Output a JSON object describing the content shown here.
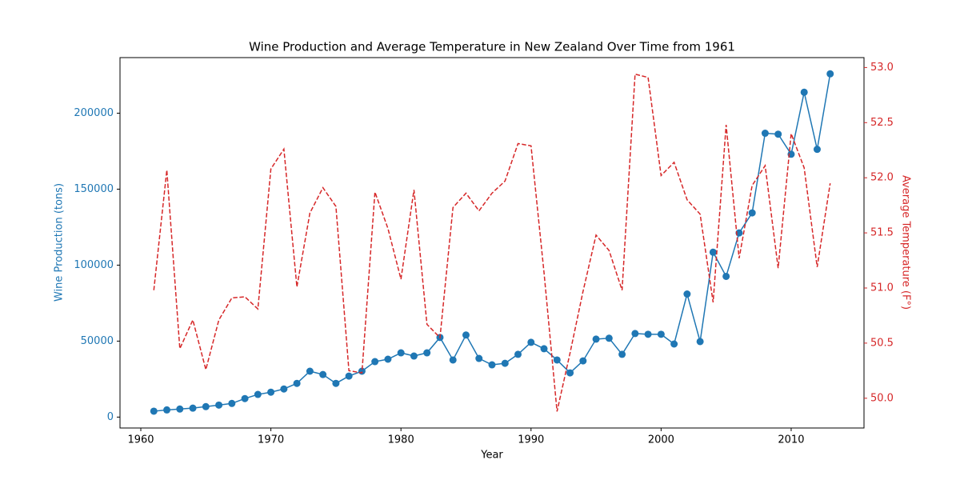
{
  "chart_data": {
    "type": "line",
    "title": "Wine Production and Average Temperature in New Zealand Over Time from 1961",
    "xlabel": "Year",
    "ylabel": "Wine Production (tons)",
    "y2label": "Average Temperature (F°)",
    "x": [
      1961,
      1962,
      1963,
      1964,
      1965,
      1966,
      1967,
      1968,
      1969,
      1970,
      1971,
      1972,
      1973,
      1974,
      1975,
      1976,
      1977,
      1978,
      1979,
      1980,
      1981,
      1982,
      1983,
      1984,
      1985,
      1986,
      1987,
      1988,
      1989,
      1990,
      1991,
      1992,
      1993,
      1994,
      1995,
      1996,
      1997,
      1998,
      1999,
      2000,
      2001,
      2002,
      2003,
      2004,
      2005,
      2006,
      2007,
      2008,
      2009,
      2010,
      2011,
      2012,
      2013
    ],
    "series": [
      {
        "color": "#1f77b4",
        "marker": true,
        "linestyle": "solid",
        "axis": "y",
        "values": [
          3900,
          4700,
          5300,
          5900,
          6900,
          7900,
          9000,
          12200,
          14900,
          16400,
          18500,
          22200,
          30200,
          28000,
          22200,
          27000,
          30200,
          36500,
          38100,
          42300,
          40200,
          42300,
          52400,
          37600,
          54000,
          38600,
          34400,
          35400,
          41300,
          49200,
          45000,
          37600,
          29100,
          37000,
          51300,
          51900,
          41300,
          55000,
          54500,
          54500,
          48100,
          81000,
          49700,
          108500,
          92600,
          121200,
          134400,
          186800,
          186200,
          173000,
          213800,
          176200,
          225900
        ]
      },
      {
        "color": "#d62728",
        "marker": false,
        "linestyle": "dashed",
        "axis": "y2",
        "values": [
          50.98,
          52.07,
          50.45,
          50.71,
          50.26,
          50.71,
          50.91,
          50.92,
          50.81,
          52.08,
          52.26,
          51.01,
          51.68,
          51.91,
          51.74,
          50.25,
          50.23,
          51.87,
          51.54,
          51.08,
          51.89,
          50.67,
          50.55,
          51.73,
          51.86,
          51.7,
          51.86,
          51.97,
          52.31,
          52.29,
          51.14,
          49.88,
          50.41,
          50.97,
          51.48,
          51.34,
          50.98,
          52.94,
          52.91,
          52.02,
          52.14,
          51.8,
          51.67,
          50.87,
          52.48,
          51.27,
          51.93,
          52.11,
          51.18,
          52.4,
          52.09,
          51.19,
          51.95
        ]
      }
    ],
    "xlim": [
      1958.4,
      2015.6
    ],
    "xticks": [
      1960,
      1970,
      1980,
      1990,
      2000,
      2010
    ],
    "ylim": [
      -7180,
      236580
    ],
    "yticks": [
      0,
      50000,
      100000,
      150000,
      200000
    ],
    "y2lim": [
      49.73,
      53.09
    ],
    "y2ticks": [
      {
        "value": 50,
        "label": "50.0"
      },
      50.5,
      {
        "value": 51,
        "label": "51.0"
      },
      51.5,
      {
        "value": 52,
        "label": "52.0"
      },
      52.5,
      {
        "value": 53,
        "label": "53.0"
      }
    ]
  }
}
